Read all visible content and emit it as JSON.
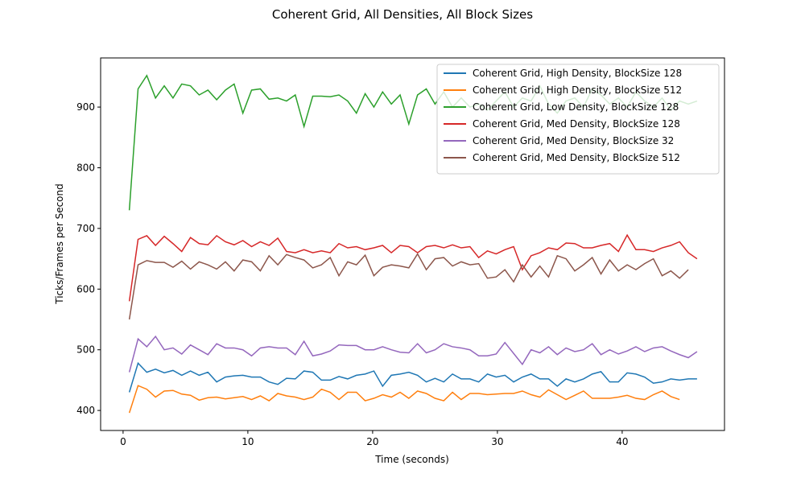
{
  "chart_data": {
    "type": "line",
    "title": "Coherent Grid, All Densities, All Block Sizes",
    "xlabel": "Time (seconds)",
    "ylabel": "Ticks/Frames per Second",
    "x": [
      0.5,
      1.2,
      1.9,
      2.6,
      3.3,
      4.0,
      4.7,
      5.4,
      6.1,
      6.8,
      7.5,
      8.2,
      8.9,
      9.6,
      10.3,
      11.0,
      11.7,
      12.4,
      13.1,
      13.8,
      14.5,
      15.2,
      15.9,
      16.6,
      17.3,
      18.0,
      18.7,
      19.4,
      20.1,
      20.8,
      21.5,
      22.2,
      22.9,
      23.6,
      24.3,
      25.0,
      25.7,
      26.4,
      27.1,
      27.8,
      28.5,
      29.2,
      29.9,
      30.6,
      31.3,
      32.0,
      32.7,
      33.4,
      34.1,
      34.8,
      35.5,
      36.2,
      36.9,
      37.6,
      38.3,
      39.0,
      39.7,
      40.4,
      41.1,
      41.8,
      42.5,
      43.2,
      43.9,
      44.6,
      45.3,
      46.0
    ],
    "series": [
      {
        "name": "Coherent Grid, High Density, BlockSize 128",
        "color": "#1f77b4",
        "values": [
          430,
          478,
          463,
          468,
          462,
          466,
          458,
          465,
          458,
          463,
          447,
          455,
          457,
          458,
          455,
          455,
          447,
          443,
          453,
          452,
          465,
          463,
          450,
          450,
          456,
          452,
          458,
          460,
          465,
          440,
          458,
          460,
          463,
          458,
          447,
          453,
          447,
          460,
          452,
          452,
          447,
          460,
          455,
          458,
          447,
          455,
          460,
          452,
          452,
          440,
          452,
          447,
          452,
          460,
          464,
          447,
          447,
          462,
          460,
          455,
          445,
          447,
          452,
          450,
          452,
          452
        ]
      },
      {
        "name": "Coherent Grid, High Density, BlockSize 512",
        "color": "#ff7f0e",
        "values": [
          396,
          441,
          435,
          422,
          432,
          433,
          427,
          425,
          417,
          421,
          422,
          419,
          421,
          423,
          418,
          424,
          416,
          428,
          424,
          422,
          418,
          422,
          435,
          430,
          418,
          430,
          430,
          416,
          420,
          426,
          422,
          430,
          420,
          432,
          428,
          420,
          416,
          430,
          418,
          428,
          428,
          426,
          427,
          428,
          428,
          432,
          426,
          422,
          434,
          426,
          418,
          425,
          432,
          420,
          420,
          420,
          422,
          425,
          420,
          418,
          426,
          432,
          423,
          418,
          null,
          null
        ]
      },
      {
        "name": "Coherent Grid, Low Density, BlockSize 128",
        "color": "#2ca02c",
        "values": [
          730,
          930,
          952,
          915,
          935,
          915,
          938,
          935,
          920,
          928,
          912,
          928,
          938,
          890,
          928,
          930,
          913,
          915,
          910,
          920,
          868,
          918,
          918,
          917,
          920,
          910,
          890,
          922,
          900,
          925,
          905,
          920,
          872,
          920,
          930,
          905,
          925,
          900,
          915,
          900,
          905,
          895,
          910,
          925,
          900,
          915,
          910,
          935,
          905,
          890,
          910,
          915,
          900,
          930,
          920,
          905,
          915,
          900,
          925,
          910,
          900,
          915,
          895,
          910,
          905,
          910
        ]
      },
      {
        "name": "Coherent Grid, Med Density, BlockSize 128",
        "color": "#d62728",
        "values": [
          580,
          682,
          688,
          672,
          687,
          675,
          662,
          685,
          675,
          673,
          688,
          678,
          673,
          680,
          670,
          678,
          672,
          684,
          662,
          660,
          665,
          660,
          663,
          660,
          675,
          668,
          670,
          665,
          668,
          672,
          660,
          672,
          670,
          660,
          670,
          672,
          668,
          673,
          668,
          670,
          652,
          663,
          658,
          665,
          670,
          632,
          655,
          660,
          668,
          665,
          676,
          675,
          668,
          668,
          672,
          675,
          662,
          689,
          665,
          665,
          662,
          668,
          672,
          678,
          660,
          650
        ]
      },
      {
        "name": "Coherent Grid, Med Density, BlockSize 32",
        "color": "#9467bd",
        "values": [
          463,
          518,
          505,
          522,
          500,
          503,
          493,
          508,
          500,
          492,
          510,
          503,
          503,
          500,
          490,
          503,
          505,
          503,
          503,
          492,
          514,
          490,
          493,
          498,
          508,
          507,
          507,
          500,
          500,
          505,
          500,
          496,
          495,
          510,
          495,
          500,
          510,
          505,
          503,
          500,
          490,
          490,
          493,
          512,
          494,
          476,
          500,
          495,
          505,
          492,
          503,
          497,
          500,
          510,
          492,
          500,
          493,
          498,
          505,
          497,
          503,
          505,
          498,
          492,
          487,
          497
        ]
      },
      {
        "name": "Coherent Grid, Med Density, BlockSize 512",
        "color": "#8c564b",
        "values": [
          550,
          640,
          647,
          644,
          644,
          636,
          646,
          633,
          645,
          640,
          633,
          645,
          630,
          648,
          645,
          630,
          655,
          640,
          657,
          652,
          648,
          635,
          640,
          652,
          622,
          645,
          640,
          656,
          622,
          636,
          640,
          638,
          635,
          658,
          632,
          650,
          652,
          638,
          645,
          640,
          642,
          618,
          620,
          632,
          612,
          640,
          620,
          638,
          620,
          655,
          650,
          630,
          640,
          652,
          625,
          648,
          630,
          640,
          632,
          642,
          650,
          622,
          630,
          618,
          632,
          null
        ]
      }
    ],
    "xlim": [
      -1.8,
      48.2
    ],
    "ylim": [
      367,
      981
    ],
    "xticks": [
      0,
      10,
      20,
      30,
      40
    ],
    "yticks": [
      400,
      500,
      600,
      700,
      800,
      900
    ],
    "legend": "upper right"
  }
}
